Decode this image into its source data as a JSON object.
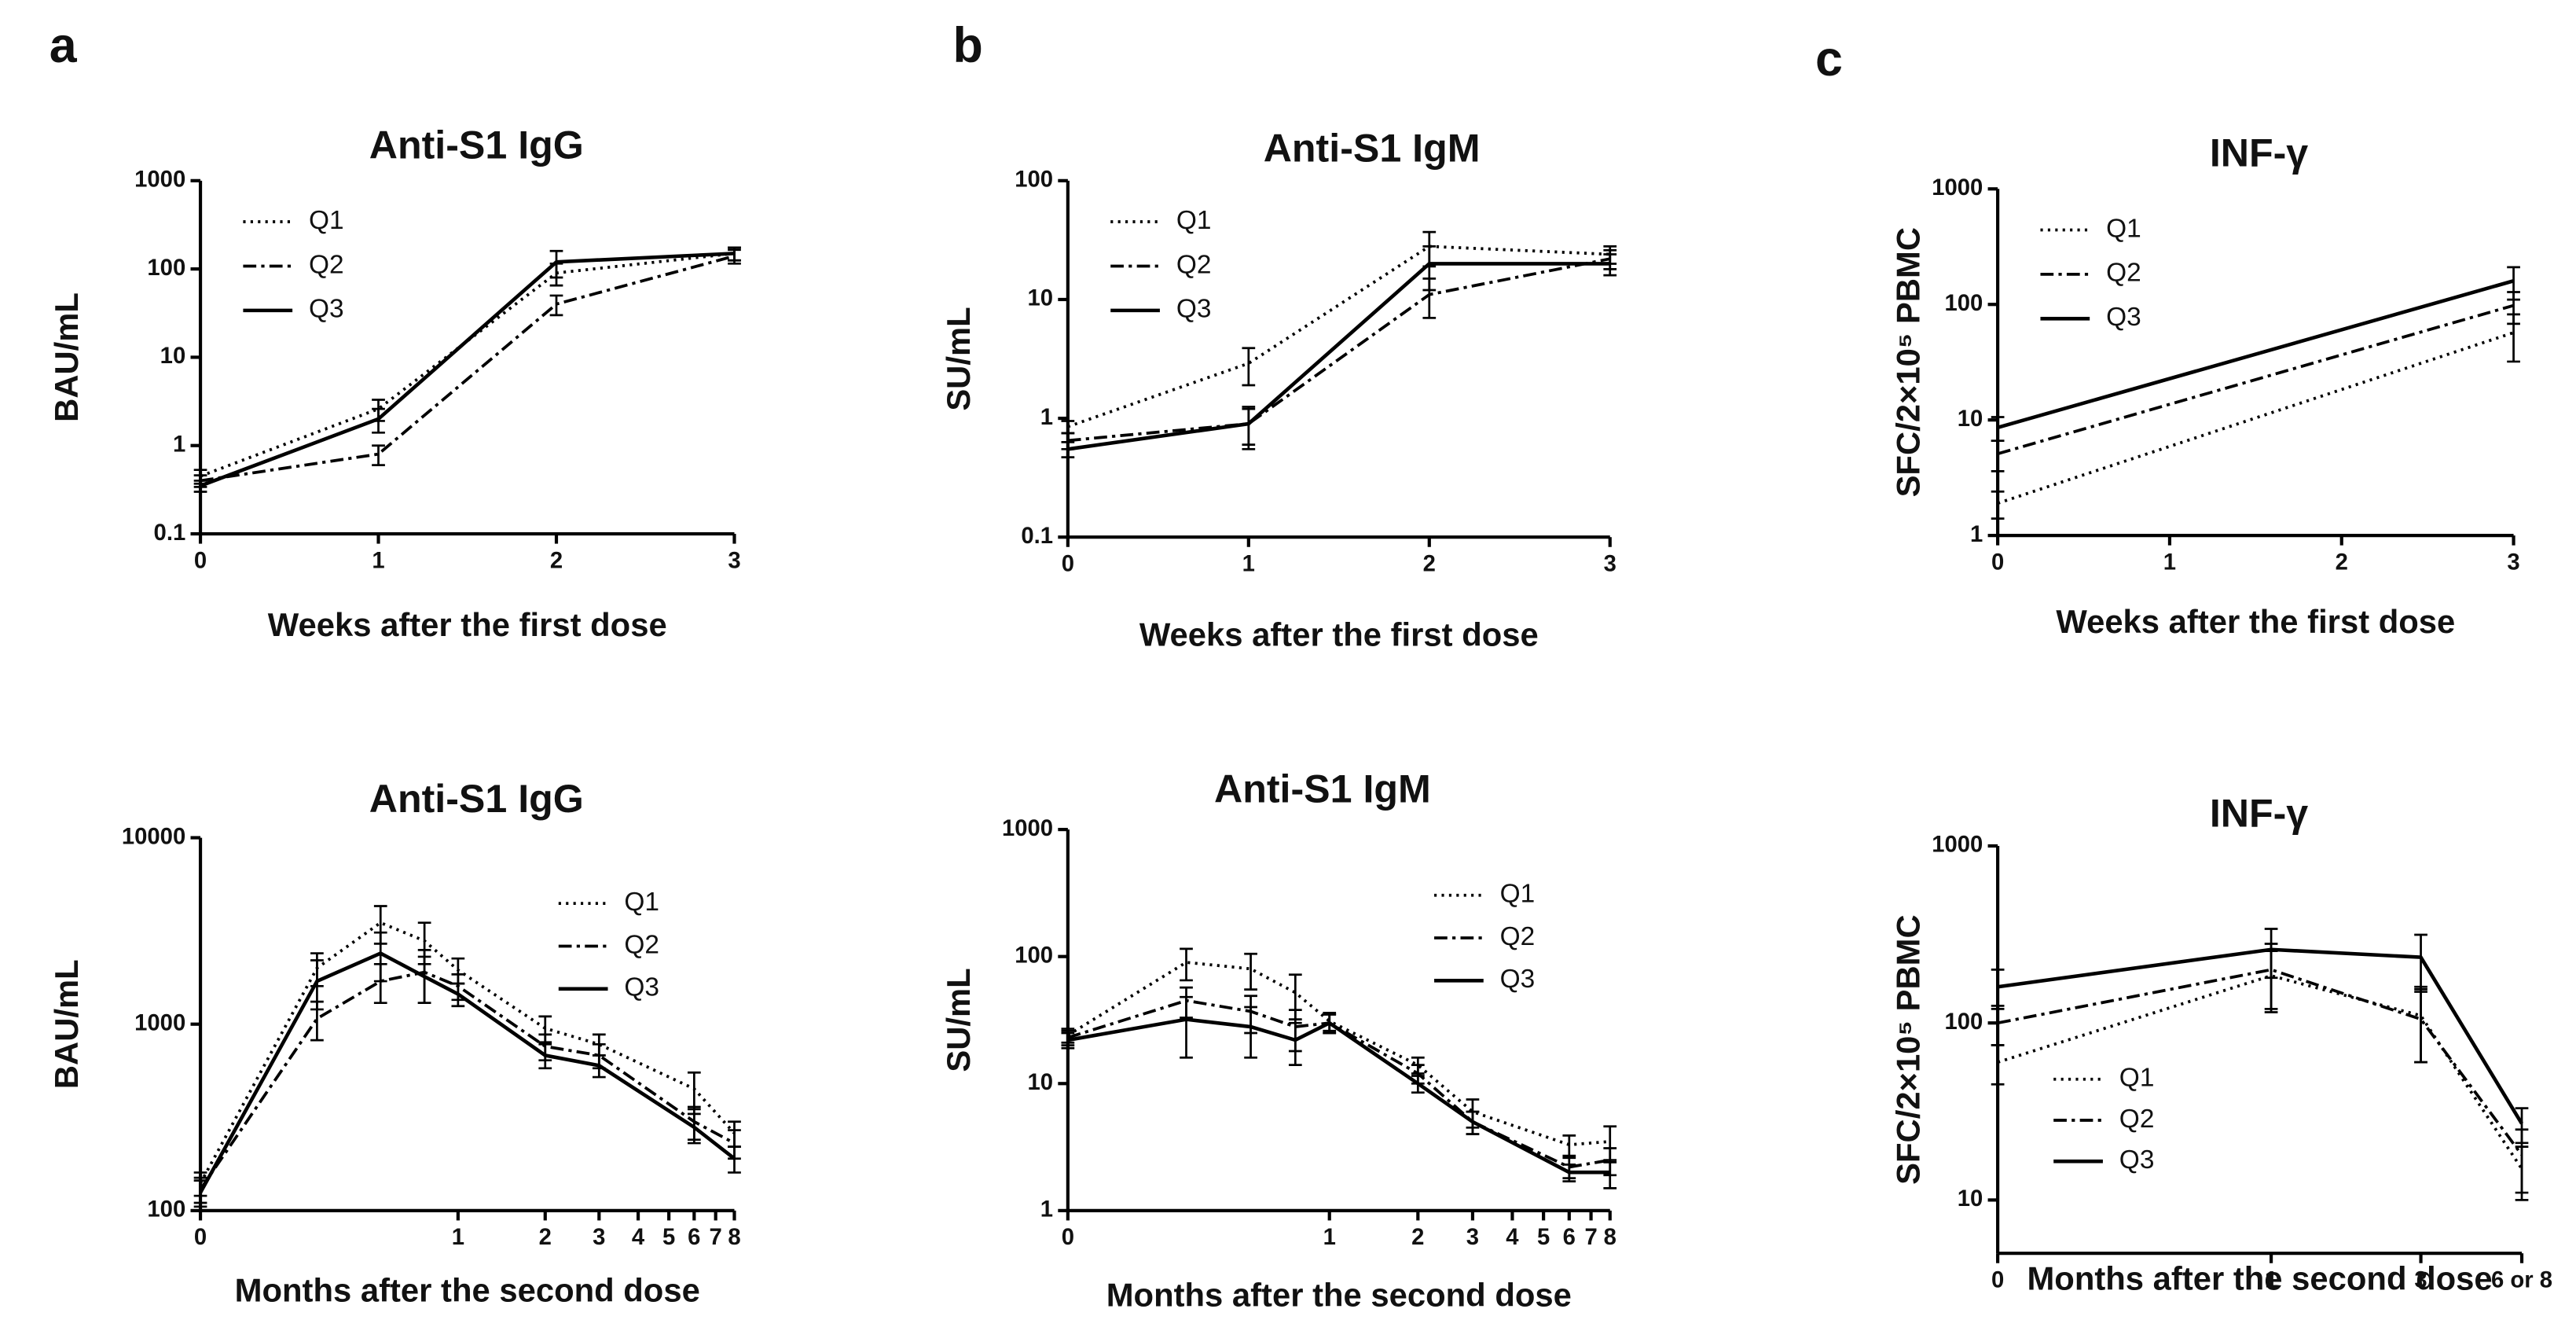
{
  "panels": [
    "a",
    "b",
    "c"
  ],
  "chart_data": [
    {
      "type": "line",
      "panel": 0,
      "title": "Anti-S1 IgG",
      "xlabel": "Weeks after the first dose",
      "ylabel": "BAU/mL",
      "x": [
        0,
        1,
        2,
        3
      ],
      "xlim": [
        0,
        3
      ],
      "xticks": [
        0,
        1,
        2,
        3
      ],
      "ylog": true,
      "ylim": [
        0.1,
        1000
      ],
      "yticks": [
        0.1,
        1,
        10,
        100,
        1000
      ],
      "legend": "upper left",
      "series": [
        {
          "name": "Q1",
          "color": "#000000",
          "linestyle": "dotted",
          "values": [
            0.45,
            2.6,
            90,
            150
          ],
          "errors": [
            0.08,
            0.7,
            25,
            25
          ]
        },
        {
          "name": "Q2",
          "color": "#000000",
          "linestyle": "dashdot",
          "values": [
            0.4,
            0.8,
            40,
            140
          ],
          "errors": [
            0.06,
            0.2,
            10,
            25
          ]
        },
        {
          "name": "Q3",
          "color": "#000000",
          "linestyle": "solid",
          "values": [
            0.35,
            2.0,
            120,
            150
          ],
          "errors": [
            0.05,
            0.6,
            40,
            25
          ]
        }
      ]
    },
    {
      "type": "line",
      "panel": 1,
      "title": "Anti-S1 IgM",
      "xlabel": "Weeks after the first dose",
      "ylabel": "SU/mL",
      "x": [
        0,
        1,
        2,
        3
      ],
      "xlim": [
        0,
        3
      ],
      "xticks": [
        0,
        1,
        2,
        3
      ],
      "ylog": true,
      "ylim": [
        0.1,
        100
      ],
      "yticks": [
        0.1,
        1,
        10,
        100
      ],
      "legend": "upper left",
      "series": [
        {
          "name": "Q1",
          "color": "#000000",
          "linestyle": "dotted",
          "values": [
            0.85,
            2.9,
            28,
            24
          ],
          "errors": [
            0.1,
            1.0,
            9,
            4
          ]
        },
        {
          "name": "Q2",
          "color": "#000000",
          "linestyle": "dashdot",
          "values": [
            0.65,
            0.9,
            11,
            22
          ],
          "errors": [
            0.1,
            0.35,
            4,
            4
          ]
        },
        {
          "name": "Q3",
          "color": "#000000",
          "linestyle": "solid",
          "values": [
            0.55,
            0.9,
            20,
            20
          ],
          "errors": [
            0.08,
            0.3,
            8,
            4
          ]
        }
      ]
    },
    {
      "type": "line",
      "panel": 2,
      "title": "INF-γ",
      "xlabel": "Weeks after the first dose",
      "ylabel": "SFC/2×10⁵ PBMC",
      "x": [
        0,
        3
      ],
      "xlim": [
        0,
        3
      ],
      "xticks": [
        0,
        1,
        2,
        3
      ],
      "ylog": true,
      "ylim": [
        1,
        1000
      ],
      "yticks": [
        1,
        10,
        100,
        1000
      ],
      "legend": "upper left",
      "series": [
        {
          "name": "Q1",
          "color": "#000000",
          "linestyle": "dotted",
          "values": [
            1.9,
            57
          ],
          "errors": [
            0.5,
            25
          ]
        },
        {
          "name": "Q2",
          "color": "#000000",
          "linestyle": "dashdot",
          "values": [
            5.1,
            98
          ],
          "errors": [
            1.5,
            30
          ]
        },
        {
          "name": "Q3",
          "color": "#000000",
          "linestyle": "solid",
          "values": [
            8.6,
            160
          ],
          "errors": [
            2,
            50
          ]
        }
      ]
    },
    {
      "type": "line",
      "title": "Anti-S1 IgG",
      "xlabel": "Months after the second dose",
      "ylabel": "BAU/mL",
      "x": [
        0,
        0.25,
        0.5,
        0.75,
        1,
        2,
        3,
        6,
        8
      ],
      "xscale": "log",
      "xlim": [
        0,
        8
      ],
      "xticks": [
        0,
        1,
        2,
        3,
        4,
        5,
        6,
        7,
        8
      ],
      "ylog": true,
      "ylim": [
        100,
        10000
      ],
      "yticks": [
        100,
        1000,
        10000
      ],
      "legend": "upper right",
      "series": [
        {
          "name": "Q1",
          "color": "#000000",
          "linestyle": "dotted",
          "values": [
            140,
            2000,
            3500,
            2800,
            1950,
            950,
            780,
            450,
            260
          ],
          "errors": [
            20,
            400,
            800,
            700,
            300,
            150,
            100,
            100,
            40
          ]
        },
        {
          "name": "Q2",
          "color": "#000000",
          "linestyle": "dashdot",
          "values": [
            130,
            1070,
            1700,
            1900,
            1600,
            760,
            680,
            300,
            230
          ],
          "errors": [
            20,
            250,
            400,
            600,
            250,
            120,
            100,
            60,
            40
          ]
        },
        {
          "name": "Q3",
          "color": "#000000",
          "linestyle": "solid",
          "values": [
            125,
            1700,
            2400,
            1800,
            1450,
            680,
            600,
            280,
            190
          ],
          "errors": [
            20,
            500,
            700,
            500,
            200,
            100,
            80,
            50,
            30
          ]
        }
      ]
    },
    {
      "type": "line",
      "title": "Anti-S1 IgM",
      "xlabel": "Months after the second dose",
      "ylabel": "SU/mL",
      "x": [
        0,
        0.25,
        0.5,
        0.75,
        1,
        2,
        3,
        6,
        8
      ],
      "xscale": "log",
      "xlim": [
        0,
        8
      ],
      "xticks": [
        0,
        1,
        2,
        3,
        4,
        5,
        6,
        7,
        8
      ],
      "ylog": true,
      "ylim": [
        1,
        1000
      ],
      "yticks": [
        1,
        10,
        100,
        1000
      ],
      "legend": "upper right",
      "series": [
        {
          "name": "Q1",
          "color": "#000000",
          "linestyle": "dotted",
          "values": [
            24,
            90,
            80,
            52,
            31,
            14,
            6,
            3.3,
            3.5
          ],
          "errors": [
            3,
            25,
            25,
            20,
            5,
            2,
            1.5,
            0.6,
            1.1
          ]
        },
        {
          "name": "Q2",
          "color": "#000000",
          "linestyle": "dashdot",
          "values": [
            23,
            45,
            37,
            28,
            30,
            12,
            5,
            2.2,
            2.5
          ],
          "errors": [
            3,
            12,
            12,
            10,
            5,
            2,
            1,
            0.4,
            0.6
          ]
        },
        {
          "name": "Q3",
          "color": "#000000",
          "linestyle": "solid",
          "values": [
            22,
            32,
            28,
            22,
            30,
            10,
            5,
            2,
            2
          ],
          "errors": [
            3,
            16,
            12,
            8,
            5,
            1.5,
            1,
            0.3,
            0.5
          ]
        }
      ]
    },
    {
      "type": "line",
      "title": "INF-γ",
      "xlabel": "Months after the second dose",
      "ylabel": "SFC/2×10⁵ PBMC",
      "x": [
        0,
        1,
        3,
        6
      ],
      "xscale": "log",
      "xlim": [
        0,
        6
      ],
      "xticks": [
        0,
        1,
        3,
        {
          "value": 6,
          "label": "6 or 8"
        }
      ],
      "ylog": true,
      "ylim": [
        5,
        1000
      ],
      "yticks": [
        10,
        100,
        1000
      ],
      "legend": "lower left",
      "series": [
        {
          "name": "Q1",
          "color": "#000000",
          "linestyle": "dotted",
          "values": [
            60,
            185,
            110,
            15
          ],
          "errors": [
            15,
            70,
            50,
            5
          ]
        },
        {
          "name": "Q2",
          "color": "#000000",
          "linestyle": "dashdot",
          "values": [
            100,
            200,
            105,
            18
          ],
          "errors": [
            25,
            80,
            45,
            7
          ]
        },
        {
          "name": "Q3",
          "color": "#000000",
          "linestyle": "solid",
          "values": [
            160,
            260,
            235,
            27
          ],
          "errors": [
            40,
            80,
            80,
            6
          ]
        }
      ]
    }
  ]
}
